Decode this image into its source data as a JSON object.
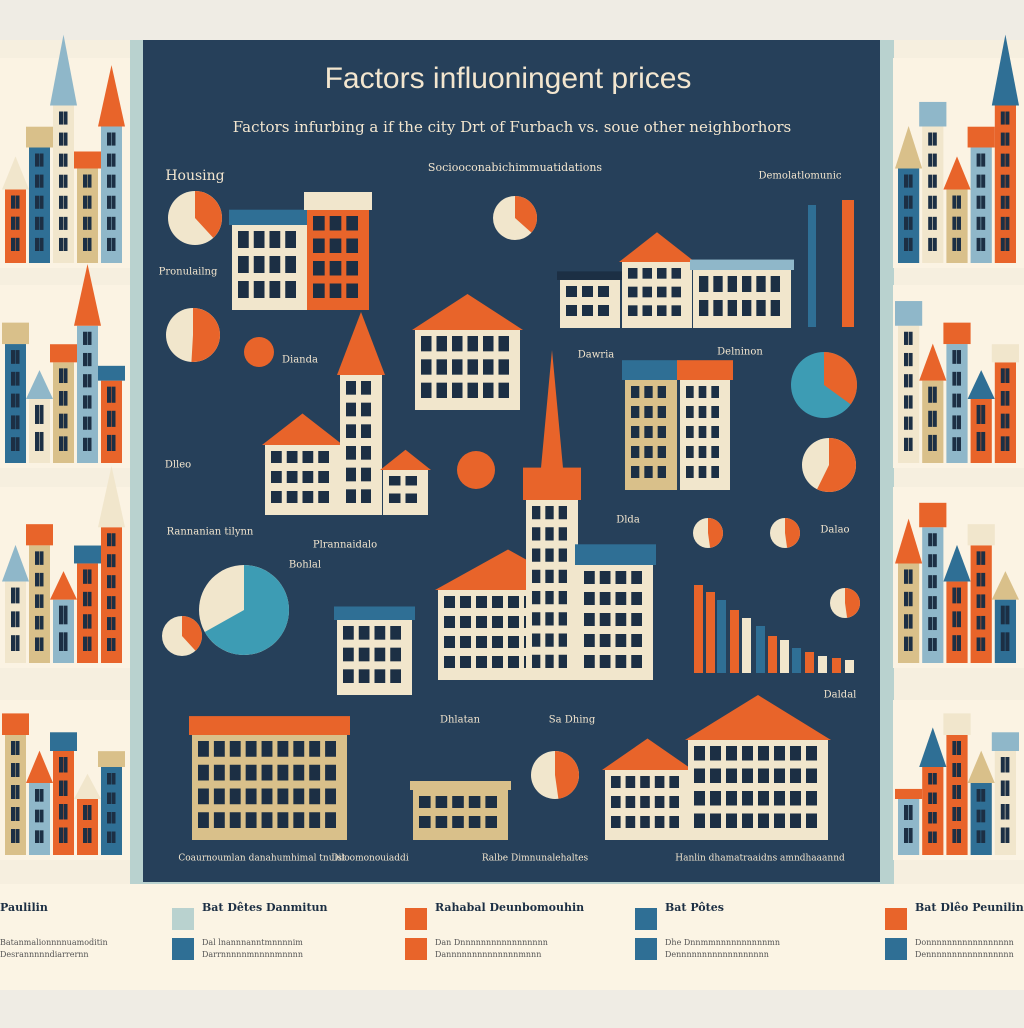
{
  "header": {
    "title": "Factors influoningent prices",
    "subtitle": "Factors infurbing a if the city Drt of Furbach vs. soue other neighborhors"
  },
  "labels": [
    "Housing",
    "Sociooconabichimmuatidations",
    "Demolatlomunic",
    "Pronulailng",
    "Dianda",
    "Dawria",
    "Delninon",
    "Bohlal",
    "Dlda",
    "Dhlatan",
    "Plrannaidalo",
    "Rannanian tilynn",
    "Dalao",
    "Dlleo",
    "Sa Dhing",
    "Daldal"
  ],
  "captions": [
    "Coaurnoumlan danahumhimal tnuist",
    "Diloomonouiaddi",
    "Ralbe Dimnunalehaltes",
    "Hanlin dhamatraaidns amndhaaannd"
  ],
  "legend": [
    {
      "title": "Paulilin",
      "lines": [
        "Batanmalionnnnuamoditin",
        "Desrannnnndiarrernn"
      ]
    },
    {
      "title": "Bat Dêtes Danmitun",
      "lines": [
        "Dal lnannnanntmnnnnim",
        "Darrnnnnnmnnnnmnnnn"
      ]
    },
    {
      "title": "Rahabal Deunbomouhin",
      "lines": [
        "Dan Dnnnnnnnnnnnnnnnnn",
        "Dannnnnnnnnnnnnnmnnn"
      ]
    },
    {
      "title": "Bat Pôtes",
      "lines": [
        "Dhe Dnnmmnnnnnnnnnnmn",
        "Dennnnnnnnnnnnnnnnnn"
      ]
    },
    {
      "title": "Bat Dlêo Peuniling",
      "lines": [
        "Donnnnnnnnnnnnnnnnn",
        "Dennnnnnnnnnnnnnnnn"
      ]
    }
  ]
}
